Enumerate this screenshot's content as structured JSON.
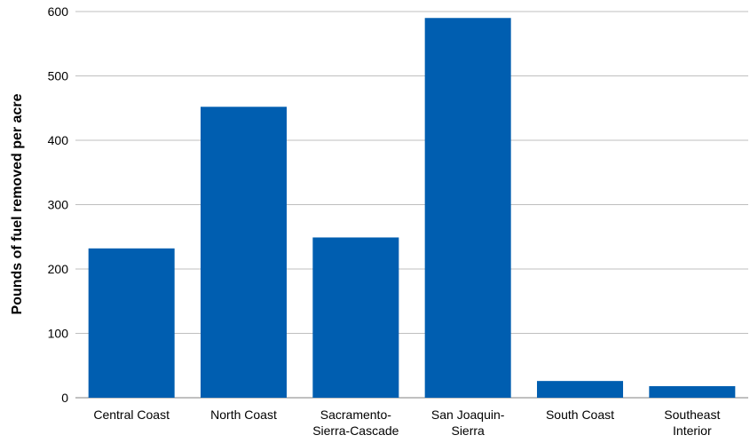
{
  "chart_data": {
    "type": "bar",
    "title": "",
    "xlabel": "",
    "ylabel": "Pounds of fuel removed per acre",
    "categories": [
      [
        "Central Coast"
      ],
      [
        "North Coast"
      ],
      [
        "Sacramento-",
        "Sierra-Cascade"
      ],
      [
        "San Joaquin-",
        "Sierra"
      ],
      [
        "South Coast"
      ],
      [
        "Southeast",
        "Interior"
      ]
    ],
    "values": [
      232,
      452,
      249,
      590,
      26,
      18
    ],
    "ylim": [
      0,
      600
    ],
    "yticks": [
      0,
      100,
      200,
      300,
      400,
      500,
      600
    ],
    "grid": true,
    "legend": "none",
    "bar_color": "#005eb0"
  }
}
